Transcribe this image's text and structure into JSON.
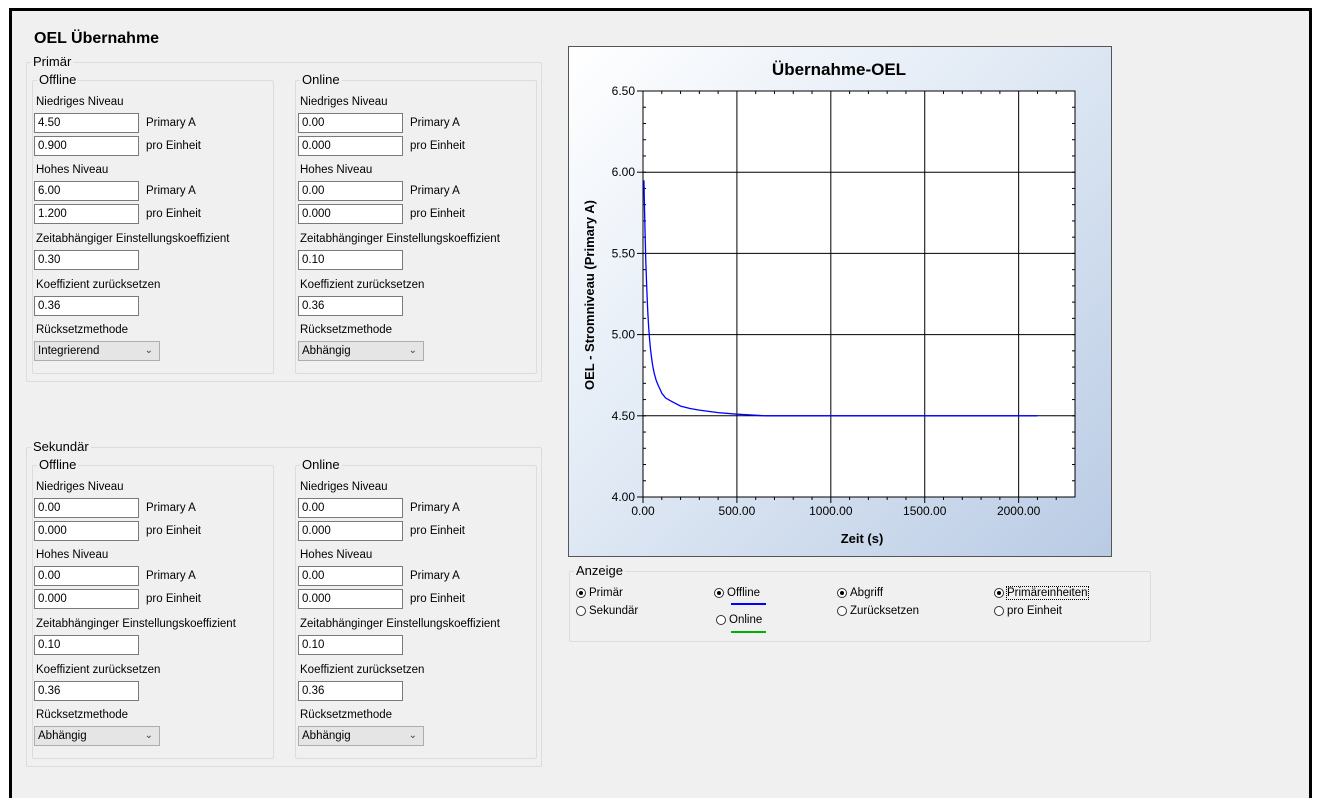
{
  "page": {
    "title": "OEL Übernahme"
  },
  "primary": {
    "legend": "Primär",
    "offline": {
      "legend": "Offline",
      "low_label": "Niedriges Niveau",
      "low_a": "4.50",
      "low_a_unit": "Primary A",
      "low_pu": "0.900",
      "low_pu_unit": "pro Einheit",
      "high_label": "Hohes Niveau",
      "high_a": "6.00",
      "high_a_unit": "Primary A",
      "high_pu": "1.200",
      "high_pu_unit": "pro Einheit",
      "tdc_label": "Zeitabhängiger Einstellungskoeffizient",
      "tdc": "0.30",
      "reset_coef_label": "Koeffizient zurücksetzen",
      "reset_coef": "0.36",
      "reset_method_label": "Rücksetzmethode",
      "reset_method": "Integrierend"
    },
    "online": {
      "legend": "Online",
      "low_label": "Niedriges Niveau",
      "low_a": "0.00",
      "low_a_unit": "Primary A",
      "low_pu": "0.000",
      "low_pu_unit": "pro Einheit",
      "high_label": "Hohes Niveau",
      "high_a": "0.00",
      "high_a_unit": "Primary A",
      "high_pu": "0.000",
      "high_pu_unit": "pro Einheit",
      "tdc_label": "Zeitabhänginger Einstellungskoeffizient",
      "tdc": "0.10",
      "reset_coef_label": "Koeffizient zurücksetzen",
      "reset_coef": "0.36",
      "reset_method_label": "Rücksetzmethode",
      "reset_method": "Abhängig"
    }
  },
  "secondary": {
    "legend": "Sekundär",
    "offline": {
      "legend": "Offline",
      "low_label": "Niedriges Niveau",
      "low_a": "0.00",
      "low_a_unit": "Primary A",
      "low_pu": "0.000",
      "low_pu_unit": "pro Einheit",
      "high_label": "Hohes Niveau",
      "high_a": "0.00",
      "high_a_unit": "Primary A",
      "high_pu": "0.000",
      "high_pu_unit": "pro Einheit",
      "tdc_label": "Zeitabhänginger Einstellungskoeffizient",
      "tdc": "0.10",
      "reset_coef_label": "Koeffizient zurücksetzen",
      "reset_coef": "0.36",
      "reset_method_label": "Rücksetzmethode",
      "reset_method": "Abhängig"
    },
    "online": {
      "legend": "Online",
      "low_label": "Niedriges Niveau",
      "low_a": "0.00",
      "low_a_unit": "Primary A",
      "low_pu": "0.000",
      "low_pu_unit": "pro Einheit",
      "high_label": "Hohes Niveau",
      "high_a": "0.00",
      "high_a_unit": "Primary A",
      "high_pu": "0.000",
      "high_pu_unit": "pro Einheit",
      "tdc_label": "Zeitabhänginger Einstellungskoeffizient",
      "tdc": "0.10",
      "reset_coef_label": "Koeffizient zurücksetzen",
      "reset_coef": "0.36",
      "reset_method_label": "Rücksetzmethode",
      "reset_method": "Abhängig"
    }
  },
  "display": {
    "legend": "Anzeige",
    "primary": "Primär",
    "secondary": "Sekundär",
    "offline": "Offline",
    "online": "Online",
    "pickup": "Abgriff",
    "reset": "Zurücksetzen",
    "primary_units": "Primäreinheiten",
    "per_unit": "pro Einheit",
    "offline_color": "#0000ff",
    "online_color": "#00b000",
    "selected": {
      "side": "Primär",
      "mode": "Offline",
      "view": "Abgriff",
      "units": "Primäreinheiten"
    }
  },
  "chart_data": {
    "type": "line",
    "title": "Übernahme-OEL",
    "xlabel": "Zeit (s)",
    "ylabel": "OEL - Stromniveau  (Primary A)",
    "xlim": [
      0,
      2300
    ],
    "ylim": [
      4.0,
      6.5
    ],
    "xticks": [
      "0.00",
      "500.00",
      "1000.00",
      "1500.00",
      "2000.00"
    ],
    "yticks": [
      "4.00",
      "4.50",
      "5.00",
      "5.50",
      "6.00",
      "6.50"
    ],
    "grid": true,
    "series": [
      {
        "name": "Offline",
        "color": "#0000ff",
        "x": [
          5,
          10,
          15,
          20,
          25,
          30,
          35,
          40,
          45,
          50,
          55,
          60,
          70,
          80,
          100,
          120,
          150,
          200,
          250,
          300,
          400,
          500,
          650,
          800,
          1000,
          1500,
          2000,
          2100
        ],
        "y": [
          5.95,
          5.67,
          5.45,
          5.28,
          5.15,
          5.05,
          4.97,
          4.91,
          4.86,
          4.82,
          4.79,
          4.76,
          4.72,
          4.69,
          4.64,
          4.61,
          4.59,
          4.56,
          4.545,
          4.535,
          4.52,
          4.51,
          4.5,
          4.5,
          4.5,
          4.5,
          4.5,
          4.5
        ]
      }
    ]
  }
}
